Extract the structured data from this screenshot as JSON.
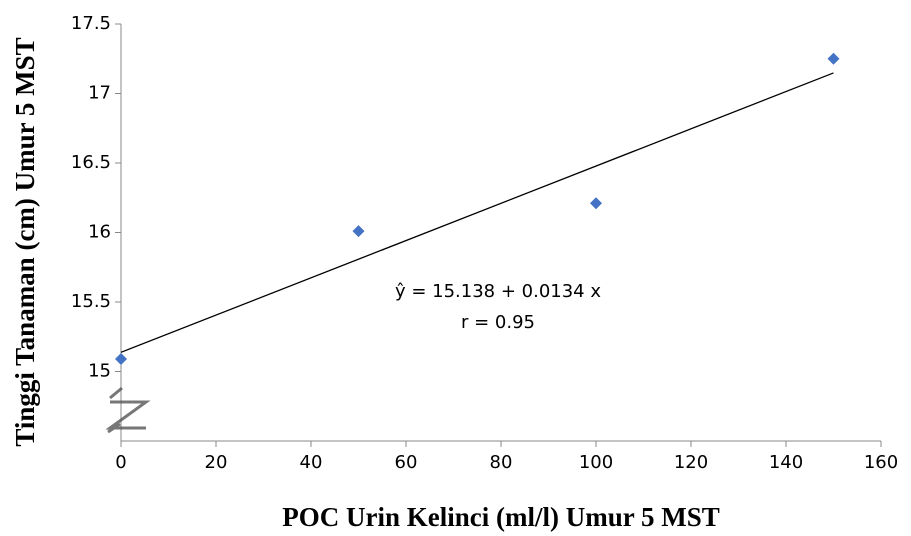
{
  "chart_data": {
    "type": "scatter",
    "x_label": "POC Urin Kelinci (ml/l) Umur 5 MST",
    "y_label": "Tinggi Tanaman (cm) Umur 5 MST",
    "x": [
      0,
      50,
      100,
      150
    ],
    "series": [
      {
        "color": "#4472c4",
        "values": [
          15.09,
          16.01,
          16.21,
          17.25
        ]
      }
    ],
    "trendline": {
      "x": [
        0,
        150
      ],
      "y": [
        15.138,
        17.148
      ],
      "color": "#000000"
    },
    "annotations": [
      "ŷ = 15.138 + 0.0134 x",
      "r = 0.95"
    ],
    "xlim": [
      0,
      160
    ],
    "xticks": [
      0,
      20,
      40,
      60,
      80,
      100,
      120,
      140,
      160
    ],
    "ylim": [
      14.5,
      17.5
    ],
    "yticks": [
      15,
      15.5,
      16,
      16.5,
      17,
      17.5
    ],
    "grid": false
  }
}
